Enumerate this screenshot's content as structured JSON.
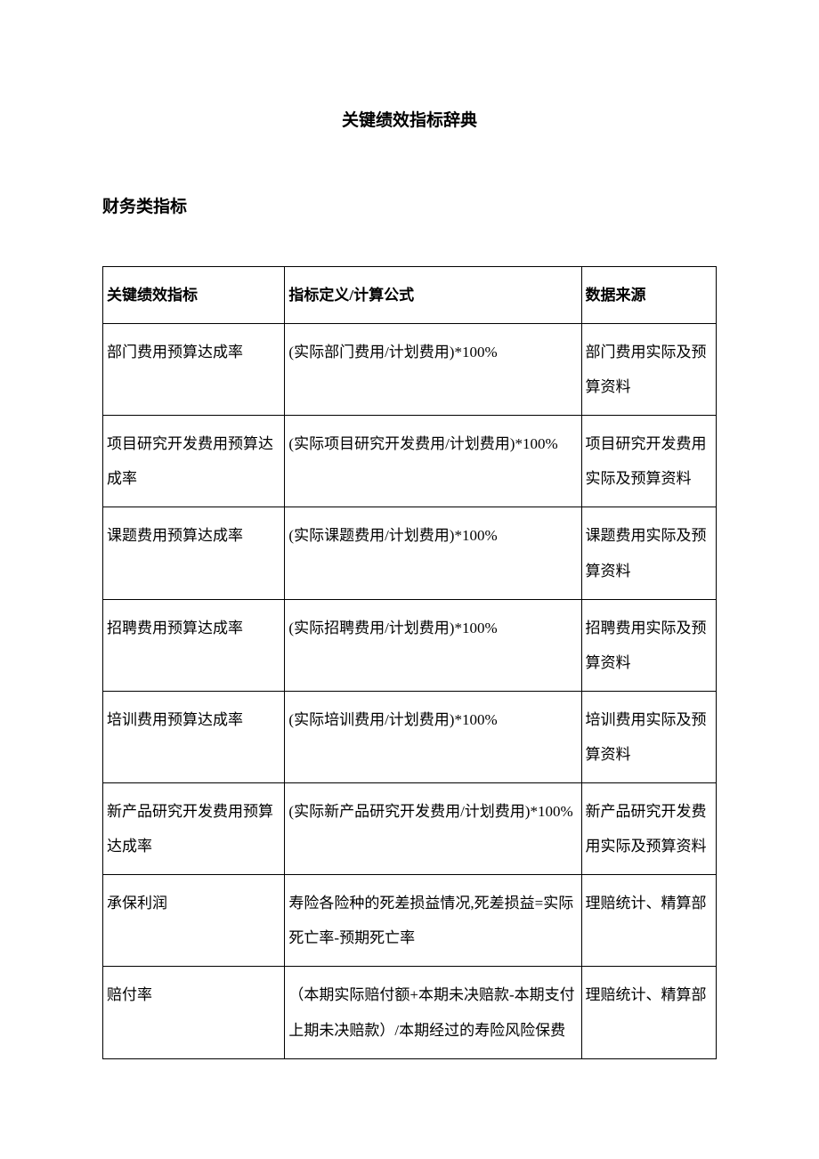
{
  "document": {
    "title": "关键绩效指标辞典",
    "section_title": "财务类指标",
    "background_color": "#ffffff",
    "text_color": "#000000",
    "border_color": "#000000",
    "title_fontsize": 19,
    "body_fontsize": 17,
    "line_height": 2.3
  },
  "table": {
    "type": "table",
    "columns": [
      {
        "label": "关键绩效指标",
        "width_pct": 27
      },
      {
        "label": "指标定义/计算公式",
        "width_pct": 44
      },
      {
        "label": "数据来源",
        "width_pct": 20
      }
    ],
    "rows": [
      {
        "c0": "部门费用预算达成率",
        "c1": "(实际部门费用/计划费用)*100%",
        "c2": "部门费用实际及预算资料"
      },
      {
        "c0": "项目研究开发费用预算达成率",
        "c1": "(实际项目研究开发费用/计划费用)*100%",
        "c2": "项目研究开发费用实际及预算资料"
      },
      {
        "c0": "课题费用预算达成率",
        "c1": "(实际课题费用/计划费用)*100%",
        "c2": "课题费用实际及预算资料"
      },
      {
        "c0": "招聘费用预算达成率",
        "c1": "(实际招聘费用/计划费用)*100%",
        "c2": "招聘费用实际及预算资料"
      },
      {
        "c0": "培训费用预算达成率",
        "c1": "(实际培训费用/计划费用)*100%",
        "c2": "培训费用实际及预算资料"
      },
      {
        "c0": "新产品研究开发费用预算达成率",
        "c1": "(实际新产品研究开发费用/计划费用)*100%",
        "c2": "新产品研究开发费用实际及预算资料"
      },
      {
        "c0": "承保利润",
        "c1": "寿险各险种的死差损益情况,死差损益=实际死亡率-预期死亡率",
        "c2": "理赔统计、精算部"
      },
      {
        "c0": "赔付率",
        "c1": "（本期实际赔付额+本期未决赔款-本期支付上期未决赔款）/本期经过的寿险风险保费",
        "c2": "理赔统计、精算部"
      }
    ]
  }
}
